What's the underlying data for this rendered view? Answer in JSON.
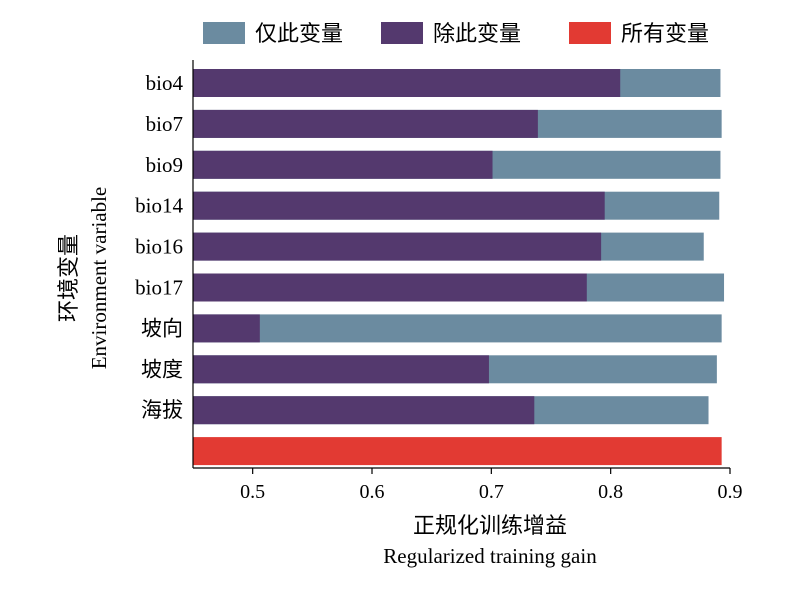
{
  "chart_data": {
    "type": "bar",
    "orientation": "horizontal",
    "categories": [
      "bio4",
      "bio7",
      "bio9",
      "bio14",
      "bio16",
      "bio17",
      "坡向",
      "坡度",
      "海拔",
      ""
    ],
    "series": [
      {
        "name": "仅此变量",
        "color": "#6b8ba0",
        "values": [
          0.892,
          0.893,
          0.892,
          0.891,
          0.878,
          0.895,
          0.893,
          0.889,
          0.882,
          null
        ]
      },
      {
        "name": "除此变量",
        "color": "#54396e",
        "values": [
          0.808,
          0.739,
          0.701,
          0.795,
          0.792,
          0.78,
          0.506,
          0.698,
          0.736,
          null
        ]
      },
      {
        "name": "所有变量",
        "color": "#e23a33",
        "values": [
          null,
          null,
          null,
          null,
          null,
          null,
          null,
          null,
          null,
          0.893
        ]
      }
    ],
    "xlim": [
      0.45,
      0.9
    ],
    "xticks": [
      0.5,
      0.6,
      0.7,
      0.8,
      0.9
    ],
    "xtick_labels": [
      "0.5",
      "0.6",
      "0.7",
      "0.8",
      "0.9"
    ],
    "xlabel_cn": "正规化训练增益",
    "xlabel_en": "Regularized training gain",
    "ylabel_cn": "环境变量",
    "ylabel_en": "Environment variable",
    "legend_position": "top",
    "grid": false
  }
}
